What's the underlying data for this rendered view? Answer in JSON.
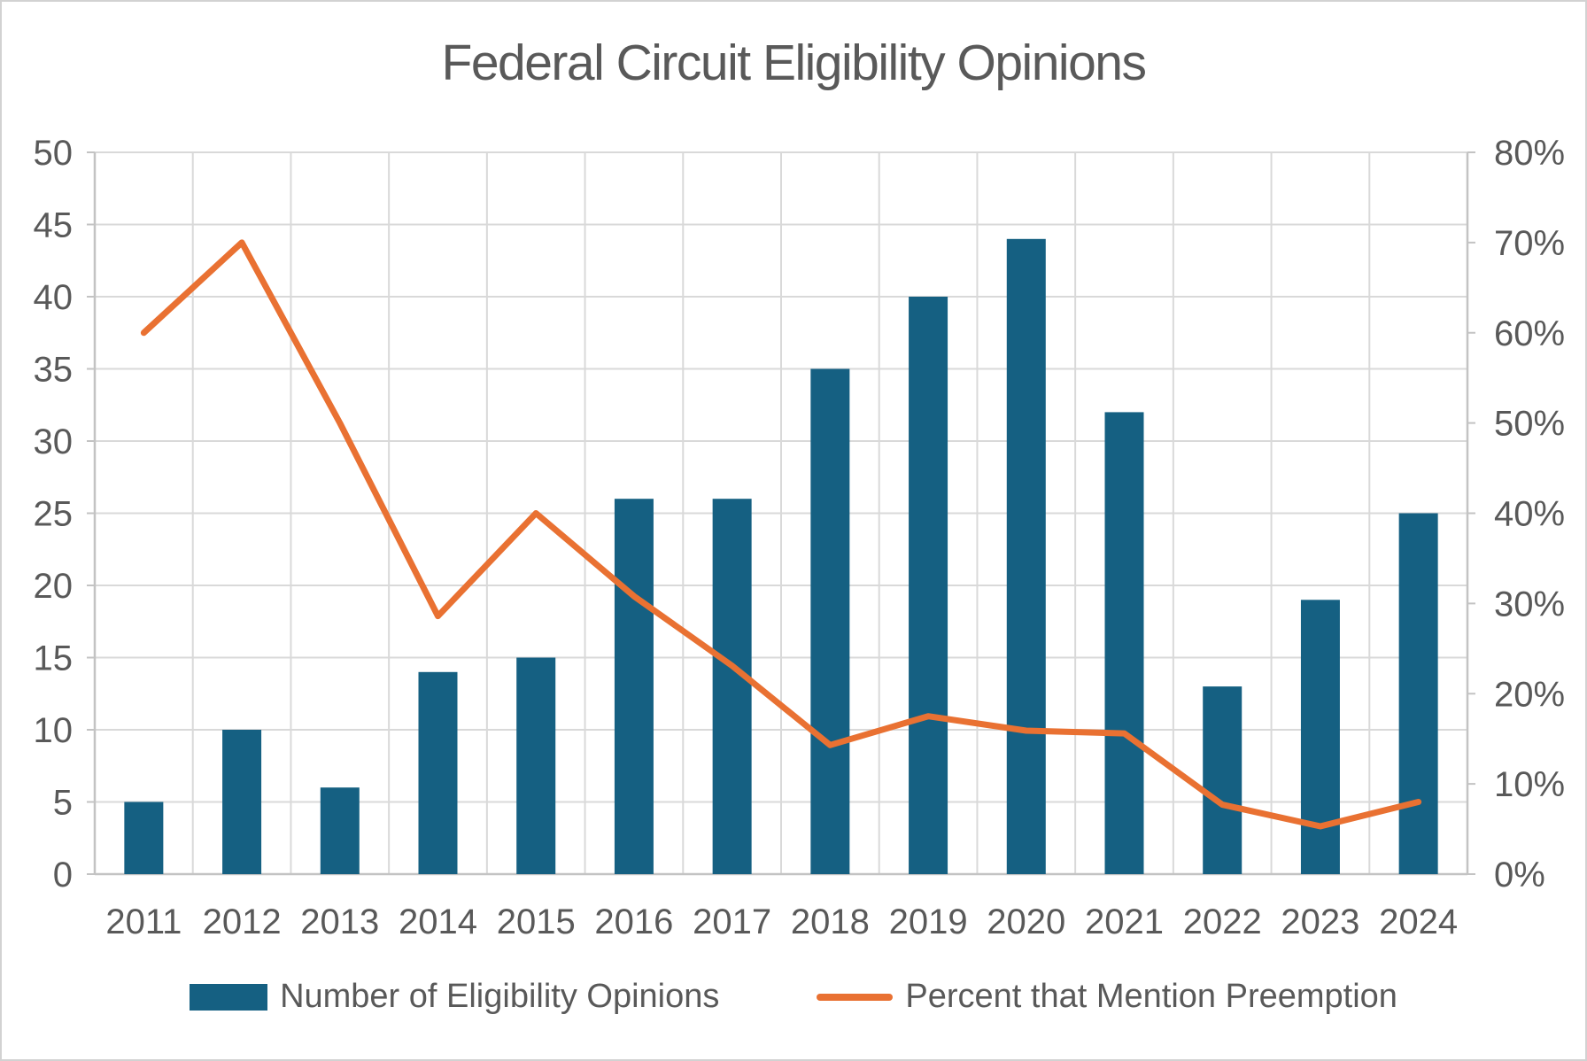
{
  "chart_data": {
    "type": "combo-bar-line",
    "title": "Federal Circuit Eligibility Opinions",
    "categories": [
      "2011",
      "2012",
      "2013",
      "2014",
      "2015",
      "2016",
      "2017",
      "2018",
      "2019",
      "2020",
      "2021",
      "2022",
      "2023",
      "2024"
    ],
    "series": [
      {
        "name": "Number of Eligibility Opinions",
        "type": "bar",
        "axis": "left",
        "color": "#156082",
        "values": [
          5,
          10,
          6,
          14,
          15,
          26,
          26,
          35,
          40,
          44,
          32,
          13,
          19,
          25
        ]
      },
      {
        "name": "Percent that Mention Preemption",
        "type": "line",
        "axis": "right",
        "color": "#E97132",
        "unit": "%",
        "values": [
          60,
          70,
          50,
          28.6,
          40,
          30.8,
          23.1,
          14.3,
          17.5,
          15.9,
          15.6,
          7.7,
          5.3,
          8
        ]
      }
    ],
    "axes": {
      "left": {
        "min": 0,
        "max": 50,
        "step": 5,
        "tick_labels": [
          "0",
          "5",
          "10",
          "15",
          "20",
          "25",
          "30",
          "35",
          "40",
          "45",
          "50"
        ]
      },
      "right": {
        "min": 0,
        "max": 80,
        "step": 10,
        "tick_labels": [
          "0%",
          "10%",
          "20%",
          "30%",
          "40%",
          "50%",
          "60%",
          "70%",
          "80%"
        ]
      },
      "x": {
        "tick_labels": [
          "2011",
          "2012",
          "2013",
          "2014",
          "2015",
          "2016",
          "2017",
          "2018",
          "2019",
          "2020",
          "2021",
          "2022",
          "2023",
          "2024"
        ]
      }
    },
    "gridlines": {
      "horizontal": true,
      "vertical": true,
      "color": "#D9D9D9"
    },
    "axis_line_color": "#C3C3C3",
    "text_color": "#595959",
    "legend": {
      "position": "bottom"
    }
  }
}
